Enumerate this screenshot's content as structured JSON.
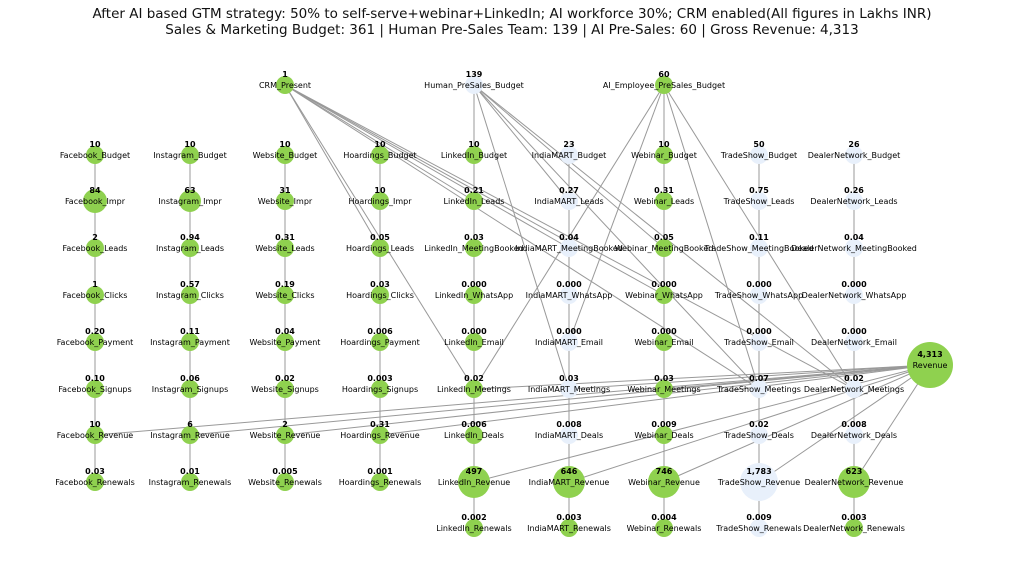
{
  "title_line1": "After AI based GTM strategy: 50% to self-serve+webinar+LinkedIn; AI workforce 30%; CRM enabled(All figures in Lakhs INR)",
  "title_line2": "Sales & Marketing Budget: 361 | Human Pre-Sales Team: 139 | AI Pre-Sales: 60 | Gross Revenue: 4,313",
  "colors": {
    "green": "#8fd14f",
    "pale": "#e8f0fb",
    "edge": "#999999"
  },
  "nodes": [
    {
      "id": "CRM_Present",
      "value": "1",
      "color": "green"
    },
    {
      "id": "Human_PreSales_Budget",
      "value": "139",
      "color": "pale"
    },
    {
      "id": "AI_Employee_PreSales_Budget",
      "value": "60",
      "color": "green"
    },
    {
      "id": "Facebook_Budget",
      "value": "10",
      "color": "green"
    },
    {
      "id": "Instagram_Budget",
      "value": "10",
      "color": "green"
    },
    {
      "id": "Website_Budget",
      "value": "10",
      "color": "green"
    },
    {
      "id": "Hoardings_Budget",
      "value": "10",
      "color": "green"
    },
    {
      "id": "LinkedIn_Budget",
      "value": "10",
      "color": "green"
    },
    {
      "id": "IndiaMART_Budget",
      "value": "23",
      "color": "pale"
    },
    {
      "id": "Webinar_Budget",
      "value": "10",
      "color": "green"
    },
    {
      "id": "TradeShow_Budget",
      "value": "50",
      "color": "pale"
    },
    {
      "id": "DealerNetwork_Budget",
      "value": "26",
      "color": "pale"
    },
    {
      "id": "Facebook_Impr",
      "value": "84",
      "color": "green"
    },
    {
      "id": "Instagram_Impr",
      "value": "63",
      "color": "green"
    },
    {
      "id": "Website_Impr",
      "value": "31",
      "color": "green"
    },
    {
      "id": "Hoardings_Impr",
      "value": "10",
      "color": "green"
    },
    {
      "id": "LinkedIn_Leads",
      "value": "0.21",
      "color": "green"
    },
    {
      "id": "IndiaMART_Leads",
      "value": "0.27",
      "color": "pale"
    },
    {
      "id": "Webinar_Leads",
      "value": "0.31",
      "color": "green"
    },
    {
      "id": "TradeShow_Leads",
      "value": "0.75",
      "color": "pale"
    },
    {
      "id": "DealerNetwork_Leads",
      "value": "0.26",
      "color": "pale"
    },
    {
      "id": "Facebook_Leads",
      "value": "2",
      "color": "green"
    },
    {
      "id": "Instagram_Leads",
      "value": "0.94",
      "color": "green"
    },
    {
      "id": "Website_Leads",
      "value": "0.31",
      "color": "green"
    },
    {
      "id": "Hoardings_Leads",
      "value": "0.05",
      "color": "green"
    },
    {
      "id": "LinkedIn_MeetingBooked",
      "value": "0.03",
      "color": "green"
    },
    {
      "id": "IndiaMART_MeetingBooked",
      "value": "0.04",
      "color": "pale"
    },
    {
      "id": "Webinar_MeetingBooked",
      "value": "0.05",
      "color": "green"
    },
    {
      "id": "TradeShow_MeetingBooked",
      "value": "0.11",
      "color": "pale"
    },
    {
      "id": "DealerNetwork_MeetingBooked",
      "value": "0.04",
      "color": "pale"
    },
    {
      "id": "Facebook_Clicks",
      "value": "1",
      "color": "green"
    },
    {
      "id": "Instagram_Clicks",
      "value": "0.57",
      "color": "green"
    },
    {
      "id": "Website_Clicks",
      "value": "0.19",
      "color": "green"
    },
    {
      "id": "Hoardings_Clicks",
      "value": "0.03",
      "color": "green"
    },
    {
      "id": "LinkedIn_WhatsApp",
      "value": "0.000",
      "color": "green"
    },
    {
      "id": "IndiaMART_WhatsApp",
      "value": "0.000",
      "color": "pale"
    },
    {
      "id": "Webinar_WhatsApp",
      "value": "0.000",
      "color": "green"
    },
    {
      "id": "TradeShow_WhatsApp",
      "value": "0.000",
      "color": "pale"
    },
    {
      "id": "DealerNetwork_WhatsApp",
      "value": "0.000",
      "color": "pale"
    },
    {
      "id": "Facebook_Payment",
      "value": "0.20",
      "color": "green"
    },
    {
      "id": "Instagram_Payment",
      "value": "0.11",
      "color": "green"
    },
    {
      "id": "Website_Payment",
      "value": "0.04",
      "color": "green"
    },
    {
      "id": "Hoardings_Payment",
      "value": "0.006",
      "color": "green"
    },
    {
      "id": "LinkedIn_Email",
      "value": "0.000",
      "color": "green"
    },
    {
      "id": "IndiaMART_Email",
      "value": "0.000",
      "color": "pale"
    },
    {
      "id": "Webinar_Email",
      "value": "0.000",
      "color": "green"
    },
    {
      "id": "TradeShow_Email",
      "value": "0.000",
      "color": "pale"
    },
    {
      "id": "DealerNetwork_Email",
      "value": "0.000",
      "color": "pale"
    },
    {
      "id": "Facebook_Signups",
      "value": "0.10",
      "color": "green"
    },
    {
      "id": "Instagram_Signups",
      "value": "0.06",
      "color": "green"
    },
    {
      "id": "Website_Signups",
      "value": "0.02",
      "color": "green"
    },
    {
      "id": "Hoardings_Signups",
      "value": "0.003",
      "color": "green"
    },
    {
      "id": "LinkedIn_Meetings",
      "value": "0.02",
      "color": "green"
    },
    {
      "id": "IndiaMART_Meetings",
      "value": "0.03",
      "color": "pale"
    },
    {
      "id": "Webinar_Meetings",
      "value": "0.03",
      "color": "green"
    },
    {
      "id": "TradeShow_Meetings",
      "value": "0.07",
      "color": "pale"
    },
    {
      "id": "DealerNetwork_Meetings",
      "value": "0.02",
      "color": "pale"
    },
    {
      "id": "Facebook_Revenue",
      "value": "10",
      "color": "green"
    },
    {
      "id": "Instagram_Revenue",
      "value": "6",
      "color": "green"
    },
    {
      "id": "Website_Revenue",
      "value": "2",
      "color": "green"
    },
    {
      "id": "Hoardings_Revenue",
      "value": "0.31",
      "color": "green"
    },
    {
      "id": "LinkedIn_Deals",
      "value": "0.006",
      "color": "green"
    },
    {
      "id": "IndiaMART_Deals",
      "value": "0.008",
      "color": "pale"
    },
    {
      "id": "Webinar_Deals",
      "value": "0.009",
      "color": "green"
    },
    {
      "id": "TradeShow_Deals",
      "value": "0.02",
      "color": "pale"
    },
    {
      "id": "DealerNetwork_Deals",
      "value": "0.008",
      "color": "pale"
    },
    {
      "id": "Facebook_Renewals",
      "value": "0.03",
      "color": "green"
    },
    {
      "id": "Instagram_Renewals",
      "value": "0.01",
      "color": "green"
    },
    {
      "id": "Website_Renewals",
      "value": "0.005",
      "color": "green"
    },
    {
      "id": "Hoardings_Renewals",
      "value": "0.001",
      "color": "green"
    },
    {
      "id": "LinkedIn_Revenue",
      "value": "497",
      "color": "green"
    },
    {
      "id": "IndiaMART_Revenue",
      "value": "646",
      "color": "green"
    },
    {
      "id": "Webinar_Revenue",
      "value": "746",
      "color": "green"
    },
    {
      "id": "TradeShow_Revenue",
      "value": "1,783",
      "color": "pale"
    },
    {
      "id": "DealerNetwork_Revenue",
      "value": "623",
      "color": "green"
    },
    {
      "id": "LinkedIn_Renewals",
      "value": "0.002",
      "color": "green"
    },
    {
      "id": "IndiaMART_Renewals",
      "value": "0.003",
      "color": "green"
    },
    {
      "id": "Webinar_Renewals",
      "value": "0.004",
      "color": "green"
    },
    {
      "id": "TradeShow_Renewals",
      "value": "0.009",
      "color": "pale"
    },
    {
      "id": "DealerNetwork_Renewals",
      "value": "0.003",
      "color": "green"
    },
    {
      "id": "Revenue",
      "value": "4,313",
      "color": "green"
    }
  ],
  "edges": [
    [
      "Facebook_Budget",
      "Facebook_Impr"
    ],
    [
      "Facebook_Impr",
      "Facebook_Leads"
    ],
    [
      "Facebook_Leads",
      "Facebook_Clicks"
    ],
    [
      "Facebook_Clicks",
      "Facebook_Payment"
    ],
    [
      "Facebook_Payment",
      "Facebook_Signups"
    ],
    [
      "Facebook_Signups",
      "Facebook_Revenue"
    ],
    [
      "Facebook_Revenue",
      "Facebook_Renewals"
    ],
    [
      "Instagram_Budget",
      "Instagram_Impr"
    ],
    [
      "Instagram_Impr",
      "Instagram_Leads"
    ],
    [
      "Instagram_Leads",
      "Instagram_Clicks"
    ],
    [
      "Instagram_Clicks",
      "Instagram_Payment"
    ],
    [
      "Instagram_Payment",
      "Instagram_Signups"
    ],
    [
      "Instagram_Signups",
      "Instagram_Revenue"
    ],
    [
      "Instagram_Revenue",
      "Instagram_Renewals"
    ],
    [
      "Website_Budget",
      "Website_Impr"
    ],
    [
      "Website_Impr",
      "Website_Leads"
    ],
    [
      "Website_Leads",
      "Website_Clicks"
    ],
    [
      "Website_Clicks",
      "Website_Payment"
    ],
    [
      "Website_Payment",
      "Website_Signups"
    ],
    [
      "Website_Signups",
      "Website_Revenue"
    ],
    [
      "Website_Revenue",
      "Website_Renewals"
    ],
    [
      "Hoardings_Budget",
      "Hoardings_Impr"
    ],
    [
      "Hoardings_Impr",
      "Hoardings_Leads"
    ],
    [
      "Hoardings_Leads",
      "Hoardings_Clicks"
    ],
    [
      "Hoardings_Clicks",
      "Hoardings_Payment"
    ],
    [
      "Hoardings_Payment",
      "Hoardings_Signups"
    ],
    [
      "Hoardings_Signups",
      "Hoardings_Revenue"
    ],
    [
      "Hoardings_Revenue",
      "Hoardings_Renewals"
    ],
    [
      "LinkedIn_Budget",
      "LinkedIn_Leads"
    ],
    [
      "LinkedIn_Leads",
      "LinkedIn_MeetingBooked"
    ],
    [
      "LinkedIn_MeetingBooked",
      "LinkedIn_WhatsApp"
    ],
    [
      "LinkedIn_WhatsApp",
      "LinkedIn_Email"
    ],
    [
      "LinkedIn_Email",
      "LinkedIn_Meetings"
    ],
    [
      "LinkedIn_Meetings",
      "LinkedIn_Deals"
    ],
    [
      "LinkedIn_Deals",
      "LinkedIn_Revenue"
    ],
    [
      "LinkedIn_Revenue",
      "LinkedIn_Renewals"
    ],
    [
      "IndiaMART_Budget",
      "IndiaMART_Leads"
    ],
    [
      "IndiaMART_Leads",
      "IndiaMART_MeetingBooked"
    ],
    [
      "IndiaMART_MeetingBooked",
      "IndiaMART_WhatsApp"
    ],
    [
      "IndiaMART_WhatsApp",
      "IndiaMART_Email"
    ],
    [
      "IndiaMART_Email",
      "IndiaMART_Meetings"
    ],
    [
      "IndiaMART_Meetings",
      "IndiaMART_Deals"
    ],
    [
      "IndiaMART_Deals",
      "IndiaMART_Revenue"
    ],
    [
      "IndiaMART_Revenue",
      "IndiaMART_Renewals"
    ],
    [
      "Webinar_Budget",
      "Webinar_Leads"
    ],
    [
      "Webinar_Leads",
      "Webinar_MeetingBooked"
    ],
    [
      "Webinar_MeetingBooked",
      "Webinar_WhatsApp"
    ],
    [
      "Webinar_WhatsApp",
      "Webinar_Email"
    ],
    [
      "Webinar_Email",
      "Webinar_Meetings"
    ],
    [
      "Webinar_Meetings",
      "Webinar_Deals"
    ],
    [
      "Webinar_Deals",
      "Webinar_Revenue"
    ],
    [
      "Webinar_Revenue",
      "Webinar_Renewals"
    ],
    [
      "TradeShow_Budget",
      "TradeShow_Leads"
    ],
    [
      "TradeShow_Leads",
      "TradeShow_MeetingBooked"
    ],
    [
      "TradeShow_MeetingBooked",
      "TradeShow_WhatsApp"
    ],
    [
      "TradeShow_WhatsApp",
      "TradeShow_Email"
    ],
    [
      "TradeShow_Email",
      "TradeShow_Meetings"
    ],
    [
      "TradeShow_Meetings",
      "TradeShow_Deals"
    ],
    [
      "TradeShow_Deals",
      "TradeShow_Revenue"
    ],
    [
      "TradeShow_Revenue",
      "TradeShow_Renewals"
    ],
    [
      "DealerNetwork_Budget",
      "DealerNetwork_Leads"
    ],
    [
      "DealerNetwork_Leads",
      "DealerNetwork_MeetingBooked"
    ],
    [
      "DealerNetwork_MeetingBooked",
      "DealerNetwork_WhatsApp"
    ],
    [
      "DealerNetwork_WhatsApp",
      "DealerNetwork_Email"
    ],
    [
      "DealerNetwork_Email",
      "DealerNetwork_Meetings"
    ],
    [
      "DealerNetwork_Meetings",
      "DealerNetwork_Deals"
    ],
    [
      "DealerNetwork_Deals",
      "DealerNetwork_Revenue"
    ],
    [
      "DealerNetwork_Revenue",
      "DealerNetwork_Renewals"
    ],
    [
      "CRM_Present",
      "LinkedIn_Leads"
    ],
    [
      "CRM_Present",
      "IndiaMART_MeetingBooked"
    ],
    [
      "CRM_Present",
      "Webinar_WhatsApp"
    ],
    [
      "CRM_Present",
      "TradeShow_Meetings"
    ],
    [
      "CRM_Present",
      "DealerNetwork_Meetings"
    ],
    [
      "CRM_Present",
      "Hoardings_Leads"
    ],
    [
      "CRM_Present",
      "LinkedIn_Meetings"
    ],
    [
      "Human_PreSales_Budget",
      "LinkedIn_Leads"
    ],
    [
      "Human_PreSales_Budget",
      "IndiaMART_Leads"
    ],
    [
      "Human_PreSales_Budget",
      "Webinar_MeetingBooked"
    ],
    [
      "Human_PreSales_Budget",
      "IndiaMART_Meetings"
    ],
    [
      "Human_PreSales_Budget",
      "TradeShow_Meetings"
    ],
    [
      "Human_PreSales_Budget",
      "DealerNetwork_Meetings"
    ],
    [
      "AI_Employee_PreSales_Budget",
      "IndiaMART_Email"
    ],
    [
      "AI_Employee_PreSales_Budget",
      "Webinar_Leads"
    ],
    [
      "AI_Employee_PreSales_Budget",
      "LinkedIn_Meetings"
    ],
    [
      "AI_Employee_PreSales_Budget",
      "Webinar_Meetings"
    ],
    [
      "AI_Employee_PreSales_Budget",
      "TradeShow_Meetings"
    ],
    [
      "AI_Employee_PreSales_Budget",
      "DealerNetwork_Meetings"
    ],
    [
      "Facebook_Revenue",
      "Revenue"
    ],
    [
      "Instagram_Revenue",
      "Revenue"
    ],
    [
      "Website_Revenue",
      "Revenue"
    ],
    [
      "Hoardings_Revenue",
      "Revenue"
    ],
    [
      "LinkedIn_Revenue",
      "Revenue"
    ],
    [
      "IndiaMART_Revenue",
      "Revenue"
    ],
    [
      "Webinar_Revenue",
      "Revenue"
    ],
    [
      "TradeShow_Revenue",
      "Revenue"
    ],
    [
      "DealerNetwork_Revenue",
      "Revenue"
    ],
    [
      "LinkedIn_Meetings",
      "Revenue"
    ],
    [
      "IndiaMART_Meetings",
      "Revenue"
    ],
    [
      "Webinar_Meetings",
      "Revenue"
    ]
  ]
}
